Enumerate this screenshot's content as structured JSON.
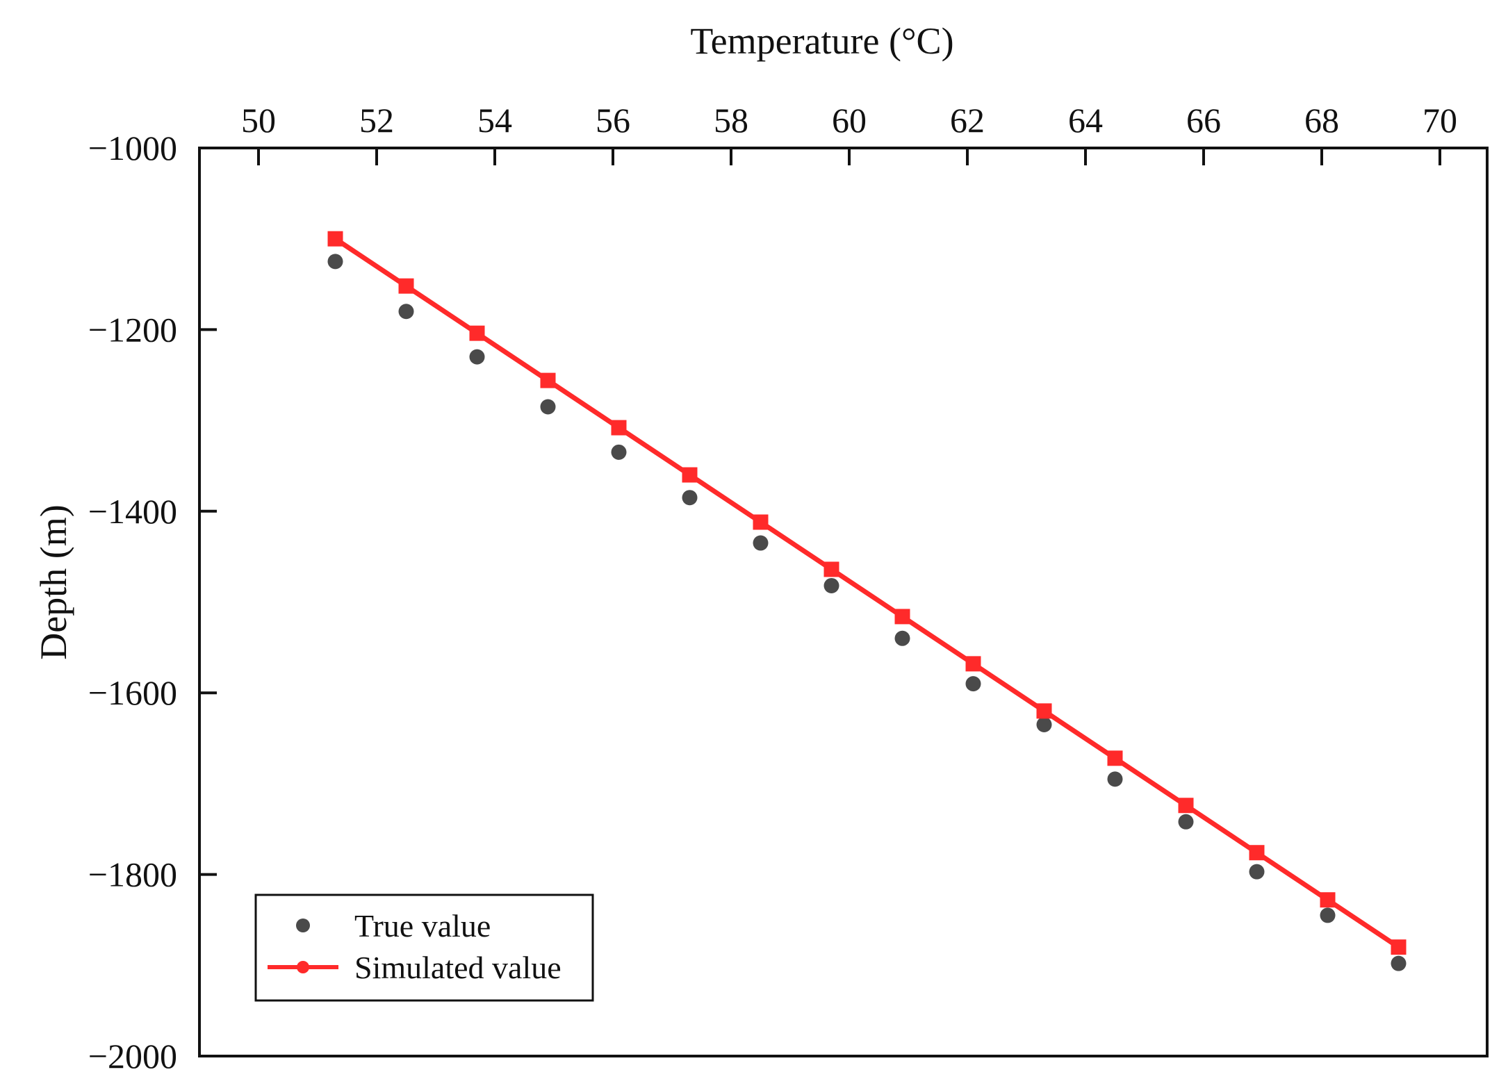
{
  "chart_data": {
    "type": "line",
    "xlabel": "Temperature (°C)",
    "ylabel": "Depth (m)",
    "x_axis_position": "top",
    "xlim": [
      49,
      70.8
    ],
    "ylim": [
      -2000,
      -1000
    ],
    "x_ticks": [
      50,
      52,
      54,
      56,
      58,
      60,
      62,
      64,
      66,
      68,
      70
    ],
    "y_ticks": [
      -1000,
      -1200,
      -1400,
      -1600,
      -1800,
      -2000
    ],
    "x_tick_labels": [
      "50",
      "52",
      "54",
      "56",
      "58",
      "60",
      "62",
      "64",
      "66",
      "68",
      "70"
    ],
    "y_tick_labels": [
      "−1000",
      "−1200",
      "−1400",
      "−1600",
      "−1800",
      "−2000"
    ],
    "legend_position": "bottom-left",
    "grid": false,
    "series": [
      {
        "name": "True value",
        "style": "scatter",
        "color": "#4a4a4a",
        "x": [
          51.3,
          52.5,
          53.7,
          54.9,
          56.1,
          57.3,
          58.5,
          59.7,
          60.9,
          62.1,
          63.3,
          64.5,
          65.7,
          66.9,
          68.1,
          69.3
        ],
        "y": [
          -1125,
          -1180,
          -1230,
          -1285,
          -1335,
          -1385,
          -1435,
          -1482,
          -1540,
          -1590,
          -1635,
          -1695,
          -1742,
          -1797,
          -1845,
          -1898
        ]
      },
      {
        "name": "Simulated value",
        "style": "line-markers",
        "color": "#ff2a2a",
        "x": [
          51.3,
          52.5,
          53.7,
          54.9,
          56.1,
          57.3,
          58.5,
          59.7,
          60.9,
          62.1,
          63.3,
          64.5,
          65.7,
          66.9,
          68.1,
          69.3
        ],
        "y": [
          -1100,
          -1152,
          -1204,
          -1256,
          -1308,
          -1360,
          -1412,
          -1464,
          -1516,
          -1568,
          -1620,
          -1672,
          -1724,
          -1776,
          -1828,
          -1880
        ]
      }
    ]
  }
}
